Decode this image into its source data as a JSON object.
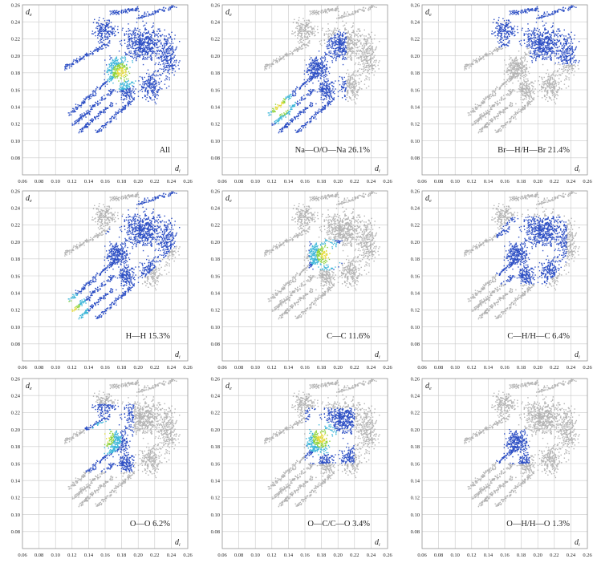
{
  "figure": {
    "x_axis_symbol": "d",
    "x_axis_subscript": "i",
    "y_axis_symbol": "d",
    "y_axis_subscript": "e"
  },
  "chart_data": [
    {
      "type": "scatter",
      "kind": "fingerprint-plot",
      "label": "All",
      "xlim": [
        0.06,
        0.26
      ],
      "ylim": [
        0.06,
        0.26
      ],
      "ticks": [
        "0.06",
        "0.08",
        "0.10",
        "0.12",
        "0.14",
        "0.16",
        "0.18",
        "0.20",
        "0.22",
        "0.24",
        "0.26"
      ],
      "grid": true,
      "highlight": "all",
      "hot_spot": [
        0.18,
        0.18
      ]
    },
    {
      "type": "scatter",
      "kind": "fingerprint-plot",
      "label": "Na—O/O—Na 26.1%",
      "contact": "Na—O/O—Na",
      "percent": 26.1,
      "xlim": [
        0.06,
        0.26
      ],
      "ylim": [
        0.06,
        0.26
      ],
      "ticks": [
        "0.06",
        "0.08",
        "0.10",
        "0.12",
        "0.14",
        "0.16",
        "0.18",
        "0.20",
        "0.22",
        "0.24",
        "0.26"
      ],
      "grid": true,
      "highlight": "spikes",
      "hot_spot": [
        0.13,
        0.14
      ]
    },
    {
      "type": "scatter",
      "kind": "fingerprint-plot",
      "label": "Br—H/H—Br 21.4%",
      "contact": "Br—H/H—Br",
      "percent": 21.4,
      "xlim": [
        0.06,
        0.26
      ],
      "ylim": [
        0.06,
        0.26
      ],
      "ticks": [
        "0.06",
        "0.08",
        "0.10",
        "0.12",
        "0.14",
        "0.16",
        "0.18",
        "0.20",
        "0.22",
        "0.24",
        "0.26"
      ],
      "grid": true,
      "highlight": "upper-arc",
      "hot_spot": null
    },
    {
      "type": "scatter",
      "kind": "fingerprint-plot",
      "label": "H—H 15.3%",
      "contact": "H—H",
      "percent": 15.3,
      "xlim": [
        0.06,
        0.26
      ],
      "ylim": [
        0.06,
        0.26
      ],
      "ticks": [
        "0.06",
        "0.08",
        "0.10",
        "0.12",
        "0.14",
        "0.16",
        "0.18",
        "0.20",
        "0.22",
        "0.24",
        "0.26"
      ],
      "grid": true,
      "highlight": "diagonal-wing",
      "hot_spot": [
        0.12,
        0.12
      ]
    },
    {
      "type": "scatter",
      "kind": "fingerprint-plot",
      "label": "C—C 11.6%",
      "contact": "C—C",
      "percent": 11.6,
      "xlim": [
        0.06,
        0.26
      ],
      "ylim": [
        0.06,
        0.26
      ],
      "ticks": [
        "0.06",
        "0.08",
        "0.10",
        "0.12",
        "0.14",
        "0.16",
        "0.18",
        "0.20",
        "0.22",
        "0.24",
        "0.26"
      ],
      "grid": true,
      "highlight": "center-triangle",
      "hot_spot": [
        0.185,
        0.185
      ]
    },
    {
      "type": "scatter",
      "kind": "fingerprint-plot",
      "label": "C—H/H—C 6.4%",
      "contact": "C—H/H—C",
      "percent": 6.4,
      "xlim": [
        0.06,
        0.26
      ],
      "ylim": [
        0.06,
        0.26
      ],
      "ticks": [
        "0.06",
        "0.08",
        "0.10",
        "0.12",
        "0.14",
        "0.16",
        "0.18",
        "0.20",
        "0.22",
        "0.24",
        "0.26"
      ],
      "grid": true,
      "highlight": "wings",
      "hot_spot": null
    },
    {
      "type": "scatter",
      "kind": "fingerprint-plot",
      "label": "O—O 6.2%",
      "contact": "O—O",
      "percent": 6.2,
      "xlim": [
        0.06,
        0.26
      ],
      "ylim": [
        0.06,
        0.26
      ],
      "ticks": [
        "0.06",
        "0.08",
        "0.10",
        "0.12",
        "0.14",
        "0.16",
        "0.18",
        "0.20",
        "0.22",
        "0.24",
        "0.26"
      ],
      "grid": true,
      "highlight": "left-blob",
      "hot_spot": [
        0.16,
        0.19
      ]
    },
    {
      "type": "scatter",
      "kind": "fingerprint-plot",
      "label": "O—C/C—O 3.4%",
      "contact": "O—C/C—O",
      "percent": 3.4,
      "xlim": [
        0.06,
        0.26
      ],
      "ylim": [
        0.06,
        0.26
      ],
      "ticks": [
        "0.06",
        "0.08",
        "0.10",
        "0.12",
        "0.14",
        "0.16",
        "0.18",
        "0.20",
        "0.22",
        "0.24",
        "0.26"
      ],
      "grid": true,
      "highlight": "fan",
      "hot_spot": [
        0.18,
        0.19
      ]
    },
    {
      "type": "scatter",
      "kind": "fingerprint-plot",
      "label": "O—H/H—O 1.3%",
      "contact": "O—H/H—O",
      "percent": 1.3,
      "xlim": [
        0.06,
        0.26
      ],
      "ylim": [
        0.06,
        0.26
      ],
      "ticks": [
        "0.06",
        "0.08",
        "0.10",
        "0.12",
        "0.14",
        "0.16",
        "0.18",
        "0.20",
        "0.22",
        "0.24",
        "0.26"
      ],
      "grid": true,
      "highlight": "small-wedge",
      "hot_spot": null
    }
  ],
  "colors": {
    "grid": "#c9c9c9",
    "frame": "#9a9a9a",
    "gray_points": "#b4b4b4",
    "blue_points": "#2d4fc4",
    "cyan_points": "#3fb7d9",
    "green_points": "#8fd33c",
    "yellow_points": "#e4dc3a",
    "text": "#222222"
  }
}
